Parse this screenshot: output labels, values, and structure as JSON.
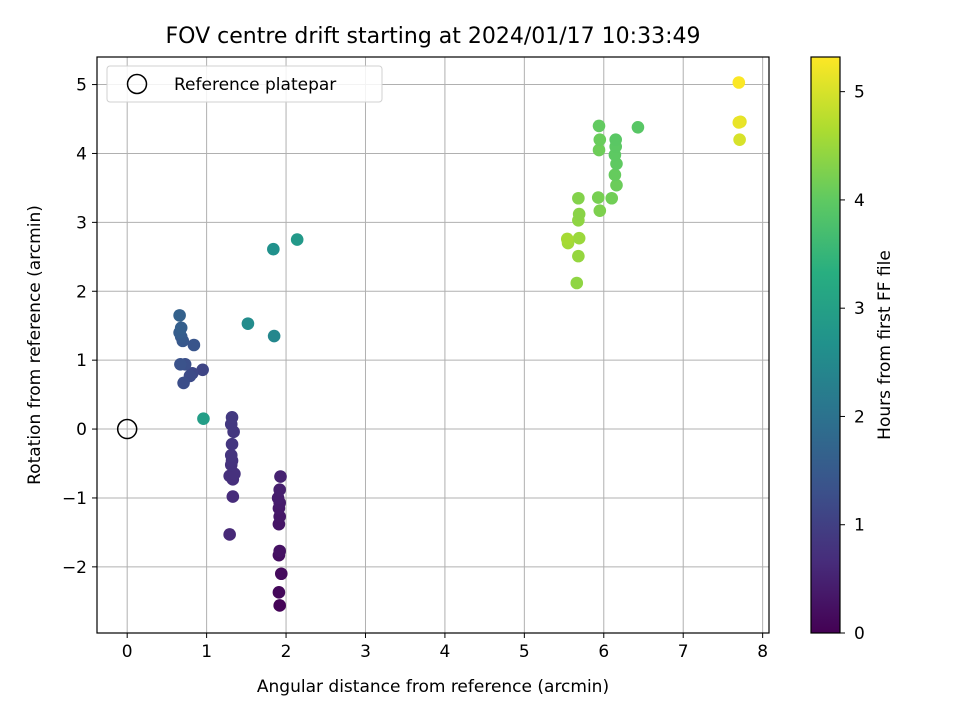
{
  "chart_data": {
    "type": "scatter",
    "title": "FOV centre drift starting at 2024/01/17 10:33:49",
    "xlabel": "Angular distance from reference (arcmin)",
    "ylabel": "Rotation from reference (arcmin)",
    "xlim": [
      -0.38,
      8.08
    ],
    "ylim": [
      -2.96,
      5.4
    ],
    "xticks": [
      0,
      1,
      2,
      3,
      4,
      5,
      6,
      7,
      8
    ],
    "yticks": [
      -2,
      -1,
      0,
      1,
      2,
      3,
      4,
      5
    ],
    "grid": true,
    "legend": {
      "placement": "top-left",
      "entries": [
        "Reference platepar"
      ]
    },
    "reference_point": {
      "x": 0,
      "y": 0,
      "label": "Reference platepar"
    },
    "colorbar": {
      "label": "Hours from first FF file",
      "colormap": "viridis",
      "range": [
        0,
        5.32
      ],
      "ticks": [
        0,
        1,
        2,
        3,
        4,
        5
      ]
    },
    "points": [
      {
        "x": 1.92,
        "y": -2.56,
        "c": 0.05
      },
      {
        "x": 1.91,
        "y": -2.37,
        "c": 0.1
      },
      {
        "x": 1.94,
        "y": -2.1,
        "c": 0.15
      },
      {
        "x": 1.91,
        "y": -1.83,
        "c": 0.2
      },
      {
        "x": 1.92,
        "y": -1.77,
        "c": 0.25
      },
      {
        "x": 1.91,
        "y": -1.38,
        "c": 0.3
      },
      {
        "x": 1.92,
        "y": -1.27,
        "c": 0.33
      },
      {
        "x": 1.91,
        "y": -1.15,
        "c": 0.36
      },
      {
        "x": 1.92,
        "y": -1.07,
        "c": 0.39
      },
      {
        "x": 1.9,
        "y": -1.0,
        "c": 0.42
      },
      {
        "x": 1.92,
        "y": -0.88,
        "c": 0.45
      },
      {
        "x": 1.93,
        "y": -0.69,
        "c": 0.5
      },
      {
        "x": 1.29,
        "y": -1.53,
        "c": 0.6
      },
      {
        "x": 1.33,
        "y": -0.98,
        "c": 0.65
      },
      {
        "x": 1.33,
        "y": -0.73,
        "c": 0.7
      },
      {
        "x": 1.29,
        "y": -0.68,
        "c": 0.72
      },
      {
        "x": 1.35,
        "y": -0.65,
        "c": 0.74
      },
      {
        "x": 1.31,
        "y": -0.52,
        "c": 0.76
      },
      {
        "x": 1.32,
        "y": -0.46,
        "c": 0.78
      },
      {
        "x": 1.31,
        "y": -0.38,
        "c": 0.8
      },
      {
        "x": 1.32,
        "y": -0.22,
        "c": 0.82
      },
      {
        "x": 1.34,
        "y": -0.04,
        "c": 0.84
      },
      {
        "x": 1.31,
        "y": 0.07,
        "c": 0.86
      },
      {
        "x": 1.32,
        "y": 0.17,
        "c": 0.88
      },
      {
        "x": 0.95,
        "y": 0.86,
        "c": 1.1
      },
      {
        "x": 0.82,
        "y": 0.81,
        "c": 1.15
      },
      {
        "x": 0.79,
        "y": 0.77,
        "c": 1.2
      },
      {
        "x": 0.71,
        "y": 0.67,
        "c": 1.25
      },
      {
        "x": 0.73,
        "y": 0.94,
        "c": 1.3
      },
      {
        "x": 0.67,
        "y": 0.94,
        "c": 1.35
      },
      {
        "x": 0.84,
        "y": 1.22,
        "c": 1.4
      },
      {
        "x": 0.7,
        "y": 1.28,
        "c": 1.45
      },
      {
        "x": 0.68,
        "y": 1.34,
        "c": 1.5
      },
      {
        "x": 0.66,
        "y": 1.4,
        "c": 1.55
      },
      {
        "x": 0.68,
        "y": 1.47,
        "c": 1.6
      },
      {
        "x": 0.66,
        "y": 1.65,
        "c": 1.65
      },
      {
        "x": 1.85,
        "y": 1.35,
        "c": 2.45
      },
      {
        "x": 1.52,
        "y": 1.53,
        "c": 2.55
      },
      {
        "x": 1.84,
        "y": 2.61,
        "c": 2.65
      },
      {
        "x": 2.14,
        "y": 2.75,
        "c": 2.85
      },
      {
        "x": 0.96,
        "y": 0.15,
        "c": 2.95
      },
      {
        "x": 5.66,
        "y": 2.12,
        "c": 4.4
      },
      {
        "x": 5.68,
        "y": 2.51,
        "c": 4.45
      },
      {
        "x": 5.69,
        "y": 2.77,
        "c": 4.5
      },
      {
        "x": 5.55,
        "y": 2.7,
        "c": 4.55
      },
      {
        "x": 5.54,
        "y": 2.76,
        "c": 4.6
      },
      {
        "x": 5.68,
        "y": 3.03,
        "c": 4.4
      },
      {
        "x": 5.69,
        "y": 3.12,
        "c": 4.35
      },
      {
        "x": 5.68,
        "y": 3.35,
        "c": 4.3
      },
      {
        "x": 5.95,
        "y": 3.17,
        "c": 4.25
      },
      {
        "x": 5.93,
        "y": 3.36,
        "c": 4.2
      },
      {
        "x": 6.1,
        "y": 3.35,
        "c": 4.15
      },
      {
        "x": 6.16,
        "y": 3.54,
        "c": 4.1
      },
      {
        "x": 6.14,
        "y": 3.69,
        "c": 4.05
      },
      {
        "x": 6.16,
        "y": 3.85,
        "c": 4.0
      },
      {
        "x": 6.14,
        "y": 3.98,
        "c": 3.98
      },
      {
        "x": 6.15,
        "y": 4.1,
        "c": 3.96
      },
      {
        "x": 6.15,
        "y": 4.2,
        "c": 3.94
      },
      {
        "x": 5.94,
        "y": 4.05,
        "c": 4.12
      },
      {
        "x": 5.95,
        "y": 4.2,
        "c": 4.08
      },
      {
        "x": 5.94,
        "y": 4.4,
        "c": 4.02
      },
      {
        "x": 6.43,
        "y": 4.38,
        "c": 3.92
      },
      {
        "x": 7.71,
        "y": 4.2,
        "c": 5.0
      },
      {
        "x": 7.72,
        "y": 4.46,
        "c": 5.1
      },
      {
        "x": 7.7,
        "y": 4.45,
        "c": 5.15
      },
      {
        "x": 7.7,
        "y": 5.03,
        "c": 5.3
      }
    ]
  }
}
